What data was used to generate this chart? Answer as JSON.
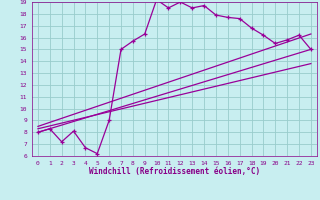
{
  "xlabel": "Windchill (Refroidissement éolien,°C)",
  "bg_color": "#c8eef0",
  "line_color": "#990099",
  "grid_color": "#99cccc",
  "xlim": [
    -0.5,
    23.5
  ],
  "ylim": [
    6,
    19
  ],
  "xticks": [
    0,
    1,
    2,
    3,
    4,
    5,
    6,
    7,
    8,
    9,
    10,
    11,
    12,
    13,
    14,
    15,
    16,
    17,
    18,
    19,
    20,
    21,
    22,
    23
  ],
  "yticks": [
    6,
    7,
    8,
    9,
    10,
    11,
    12,
    13,
    14,
    15,
    16,
    17,
    18,
    19
  ],
  "line1_x": [
    0,
    1,
    2,
    3,
    4,
    5,
    6,
    7,
    8,
    9,
    10,
    11,
    12,
    13,
    14,
    15,
    16,
    17,
    18,
    19,
    20,
    21,
    22,
    23
  ],
  "line1_y": [
    8.0,
    8.3,
    7.2,
    8.1,
    6.7,
    6.2,
    9.0,
    15.0,
    15.7,
    16.3,
    19.2,
    18.5,
    19.0,
    18.5,
    18.7,
    17.9,
    17.7,
    17.6,
    16.8,
    16.2,
    15.5,
    15.8,
    16.2,
    15.0
  ],
  "line2_x": [
    0,
    23
  ],
  "line2_y": [
    8.0,
    15.0
  ],
  "line3_x": [
    0,
    23
  ],
  "line3_y": [
    8.3,
    13.8
  ],
  "line4_x": [
    0,
    23
  ],
  "line4_y": [
    8.5,
    16.3
  ]
}
